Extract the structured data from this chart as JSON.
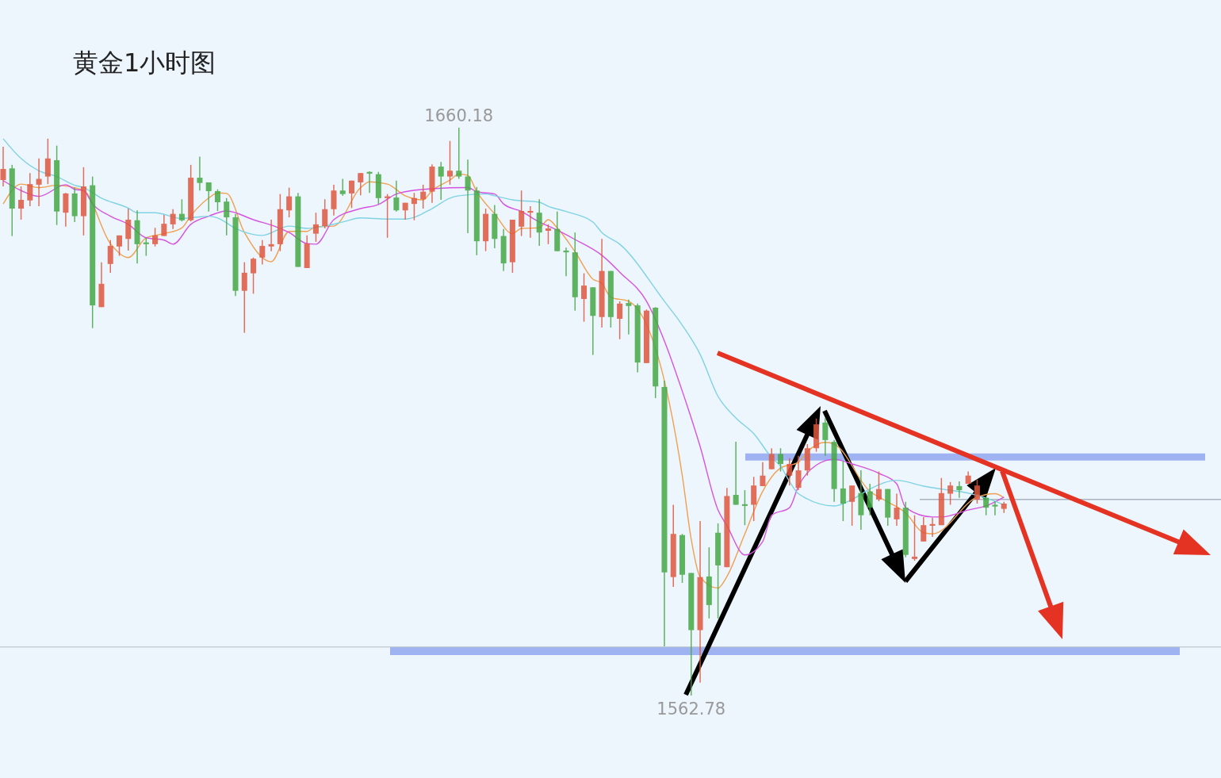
{
  "chart_data": {
    "type": "candlestick",
    "title": "黄金1小时图",
    "categories": [
      null,
      null,
      null,
      null,
      null,
      null,
      null,
      null,
      null,
      null,
      null,
      null,
      null,
      null,
      null,
      null,
      null,
      null,
      null,
      null,
      null,
      null,
      null,
      null,
      null,
      null,
      null,
      null,
      null,
      null,
      null,
      null,
      null,
      null,
      null,
      null,
      null,
      null,
      null,
      null,
      null,
      null,
      null,
      null,
      null,
      null,
      null,
      null,
      null,
      null,
      null,
      null,
      null,
      null,
      null,
      null,
      null,
      null,
      null,
      null,
      null,
      null,
      null,
      null,
      null,
      null,
      null,
      null,
      null,
      null,
      null,
      null,
      null,
      null,
      null,
      null,
      null,
      null,
      null,
      null,
      null,
      null,
      null,
      null,
      null,
      null,
      null,
      null,
      null,
      null,
      null,
      null,
      null,
      null,
      null,
      null,
      null,
      null,
      null,
      null,
      null,
      null,
      null,
      null,
      null,
      null,
      null,
      null,
      null,
      null,
      null,
      null,
      null
    ],
    "colors": [
      "#e0573e",
      "#44a844",
      "#e0573e",
      "#e0573e",
      "#e0573e",
      "#e0573e",
      "#44a844",
      "#e0573e",
      "#44a844",
      "#e0573e",
      "#44a844",
      "#e0573e",
      "#e0573e",
      "#e0573e",
      "#e0573e",
      "#44a844",
      "#44a844",
      "#e0573e",
      "#e0573e",
      "#e0573e",
      "#44a844",
      "#e0573e",
      "#44a844",
      "#44a844",
      "#44a844",
      "#44a844",
      "#44a844",
      "#e0573e",
      "#e0573e",
      "#e0573e",
      "#e0573e",
      "#e0573e",
      "#e0573e",
      "#44a844",
      "#e0573e",
      "#e0573e",
      "#e0573e",
      "#e0573e",
      "#44a844",
      "#e0573e",
      "#e0573e",
      "#44a844",
      "#44a844",
      "#e0573e",
      "#44a844",
      "#e0573e",
      "#e0573e",
      "#e0573e",
      "#e0573e",
      "#44a844",
      "#e0573e",
      "#44a844",
      "#44a844",
      "#44a844",
      "#e0573e",
      "#44a844",
      "#44a844",
      "#e0573e",
      "#e0573e",
      "#e0573e",
      "#44a844",
      "#e0573e",
      "#44a844",
      "#44a844",
      "#44a844",
      "#e0573e",
      "#44a844",
      "#e0573e",
      "#44a844",
      "#e0573e",
      "#44a844",
      "#44a844",
      "#e0573e",
      "#44a844",
      "#44a844",
      "#e0573e",
      "#44a844",
      "#44a844",
      "#e0573e",
      "#44a844",
      "#44a844",
      "#e0573e",
      "#44a844",
      "#44a844",
      "#e0573e",
      "#e0573e",
      "#e0573e",
      "#44a844",
      "#e0573e",
      "#e0573e",
      "#e0573e",
      "#e0573e",
      "#44a844",
      "#44a844",
      "#44a844",
      "#e0573e",
      "#44a844",
      "#44a844",
      "#e0573e",
      "#44a844",
      "#e0573e",
      "#44a844",
      "#e0573e",
      "#e0573e",
      "#e0573e",
      "#e0573e",
      "#e0573e",
      "#44a844",
      "#e0573e",
      "#e0573e",
      "#44a844",
      "#44a844",
      "#e0573e"
    ],
    "ohlc": [
      [
        1651.2,
        1656.9,
        1650.1,
        1653.1
      ],
      [
        1653.2,
        1653.8,
        1641.6,
        1646.3
      ],
      [
        1646.3,
        1650.1,
        1644.4,
        1647.8
      ],
      [
        1647.7,
        1652.4,
        1646.7,
        1650.5
      ],
      [
        1650.4,
        1654.9,
        1646.7,
        1651.4
      ],
      [
        1651.8,
        1658.3,
        1650.5,
        1654.9
      ],
      [
        1654.6,
        1657.1,
        1643.5,
        1645.8
      ],
      [
        1645.6,
        1649.0,
        1643.2,
        1648.9
      ],
      [
        1648.9,
        1649.9,
        1644.0,
        1645.0
      ],
      [
        1645.0,
        1653.4,
        1641.7,
        1650.1
      ],
      [
        1650.3,
        1651.8,
        1625.8,
        1629.7
      ],
      [
        1629.4,
        1637.1,
        1629.4,
        1633.4
      ],
      [
        1636.8,
        1640.9,
        1635.3,
        1639.9
      ],
      [
        1639.8,
        1641.7,
        1638.2,
        1641.7
      ],
      [
        1641.1,
        1646.3,
        1639.1,
        1644.4
      ],
      [
        1644.3,
        1646.0,
        1636.9,
        1640.2
      ],
      [
        1640.5,
        1641.3,
        1638.2,
        1640.2
      ],
      [
        1640.2,
        1643.0,
        1639.8,
        1641.7
      ],
      [
        1641.6,
        1645.2,
        1641.6,
        1643.7
      ],
      [
        1643.6,
        1646.2,
        1642.8,
        1645.4
      ],
      [
        1645.4,
        1647.9,
        1644.1,
        1644.3
      ],
      [
        1644.3,
        1653.8,
        1644.1,
        1651.6
      ],
      [
        1651.6,
        1655.2,
        1649.4,
        1650.7
      ],
      [
        1650.8,
        1650.8,
        1645.8,
        1649.3
      ],
      [
        1649.3,
        1649.6,
        1645.9,
        1647.4
      ],
      [
        1647.5,
        1648.1,
        1641.7,
        1644.8
      ],
      [
        1644.8,
        1645.4,
        1631.3,
        1632.2
      ],
      [
        1632.2,
        1637.1,
        1625.0,
        1635.3
      ],
      [
        1635.2,
        1637.9,
        1631.7,
        1637.7
      ],
      [
        1637.9,
        1640.9,
        1636.7,
        1639.9
      ],
      [
        1639.8,
        1644.4,
        1639.0,
        1640.2
      ],
      [
        1640.2,
        1648.8,
        1639.0,
        1646.2
      ],
      [
        1646.0,
        1649.9,
        1644.8,
        1648.4
      ],
      [
        1648.4,
        1649.0,
        1636.3,
        1636.3
      ],
      [
        1636.1,
        1641.7,
        1636.1,
        1640.3
      ],
      [
        1642.0,
        1645.6,
        1640.6,
        1643.6
      ],
      [
        1643.3,
        1647.9,
        1642.9,
        1646.2
      ],
      [
        1646.2,
        1650.4,
        1645.1,
        1649.4
      ],
      [
        1649.4,
        1651.4,
        1648.5,
        1648.8
      ],
      [
        1648.9,
        1651.1,
        1646.4,
        1651.1
      ],
      [
        1650.8,
        1652.4,
        1648.6,
        1652.4
      ],
      [
        1652.6,
        1652.7,
        1649.0,
        1652.3
      ],
      [
        1652.2,
        1652.6,
        1647.1,
        1648.1
      ],
      [
        1648.1,
        1648.8,
        1641.3,
        1648.4
      ],
      [
        1648.2,
        1651.1,
        1645.8,
        1646.0
      ],
      [
        1646.0,
        1647.3,
        1644.4,
        1647.3
      ],
      [
        1647.1,
        1649.0,
        1644.3,
        1648.1
      ],
      [
        1647.9,
        1650.4,
        1646.3,
        1649.2
      ],
      [
        1649.2,
        1653.9,
        1647.3,
        1653.5
      ],
      [
        1653.5,
        1654.3,
        1647.8,
        1651.8
      ],
      [
        1651.8,
        1657.9,
        1650.4,
        1652.8
      ],
      [
        1652.8,
        1660.18,
        1651.4,
        1651.8
      ],
      [
        1651.8,
        1654.7,
        1642.1,
        1649.4
      ],
      [
        1649.4,
        1650.0,
        1638.3,
        1640.7
      ],
      [
        1640.7,
        1646.3,
        1639.0,
        1645.4
      ],
      [
        1645.4,
        1646.9,
        1639.5,
        1641.1
      ],
      [
        1641.6,
        1642.8,
        1635.6,
        1636.9
      ],
      [
        1637.1,
        1644.4,
        1635.3,
        1644.4
      ],
      [
        1643.2,
        1649.4,
        1641.6,
        1645.9
      ],
      [
        1645.6,
        1646.7,
        1641.3,
        1645.9
      ],
      [
        1645.6,
        1647.9,
        1639.9,
        1642.2
      ],
      [
        1642.5,
        1643.6,
        1640.2,
        1642.9
      ],
      [
        1642.8,
        1645.8,
        1639.0,
        1639.0
      ],
      [
        1639.1,
        1639.6,
        1634.7,
        1638.8
      ],
      [
        1638.8,
        1642.2,
        1628.8,
        1631.1
      ],
      [
        1630.8,
        1635.2,
        1626.9,
        1633.1
      ],
      [
        1632.8,
        1632.8,
        1621.2,
        1627.9
      ],
      [
        1627.7,
        1641.1,
        1625.9,
        1635.6
      ],
      [
        1635.6,
        1635.6,
        1625.9,
        1627.7
      ],
      [
        1627.4,
        1630.4,
        1623.9,
        1630.0
      ],
      [
        1630.1,
        1630.7,
        1624.7,
        1629.6
      ],
      [
        1629.7,
        1630.0,
        1618.2,
        1619.9
      ],
      [
        1619.8,
        1629.0,
        1619.8,
        1628.8
      ],
      [
        1629.3,
        1629.4,
        1613.8,
        1615.8
      ],
      [
        1615.7,
        1616.8,
        1571.2,
        1583.9
      ],
      [
        1583.1,
        1595.5,
        1581.4,
        1590.5
      ],
      [
        1590.3,
        1590.5,
        1582.1,
        1583.5
      ],
      [
        1583.8,
        1583.8,
        1562.78,
        1574.0
      ],
      [
        1574.0,
        1592.7,
        1565.0,
        1583.1
      ],
      [
        1583.2,
        1588.2,
        1576.0,
        1578.3
      ],
      [
        1590.7,
        1592.3,
        1576.0,
        1585.1
      ],
      [
        1584.8,
        1598.4,
        1584.8,
        1597.0
      ],
      [
        1597.2,
        1606.3,
        1595.5,
        1595.5
      ],
      [
        1595.6,
        1598.0,
        1592.0,
        1595.3
      ],
      [
        1595.5,
        1600.3,
        1592.7,
        1598.8
      ],
      [
        1598.7,
        1602.8,
        1598.7,
        1600.5
      ],
      [
        1601.6,
        1605.2,
        1601.6,
        1604.2
      ],
      [
        1604.2,
        1605.2,
        1601.2,
        1602.5
      ],
      [
        1600.5,
        1603.5,
        1598.8,
        1602.5
      ],
      [
        1598.4,
        1603.9,
        1598.0,
        1601.4
      ],
      [
        1601.4,
        1605.9,
        1600.5,
        1605.2
      ],
      [
        1605.2,
        1610.3,
        1604.6,
        1609.3
      ],
      [
        1609.6,
        1610.4,
        1603.9,
        1606.6
      ],
      [
        1606.3,
        1606.6,
        1596.0,
        1598.2
      ],
      [
        1598.3,
        1603.0,
        1592.7,
        1595.7
      ],
      [
        1596.0,
        1598.8,
        1591.9,
        1598.8
      ],
      [
        1597.5,
        1601.4,
        1591.2,
        1593.7
      ],
      [
        1597.8,
        1599.1,
        1593.7,
        1595.0
      ],
      [
        1596.4,
        1601.2,
        1596.1,
        1598.2
      ],
      [
        1598.2,
        1598.2,
        1591.9,
        1593.3
      ],
      [
        1593.0,
        1597.4,
        1591.9,
        1595.0
      ],
      [
        1595.0,
        1596.0,
        1586.5,
        1586.9
      ],
      [
        1586.2,
        1593.7,
        1585.9,
        1586.6
      ],
      [
        1589.2,
        1593.4,
        1589.2,
        1592.0
      ],
      [
        1591.9,
        1593.3,
        1590.0,
        1592.2
      ],
      [
        1592.0,
        1600.1,
        1592.0,
        1597.5
      ],
      [
        1597.4,
        1599.4,
        1595.5,
        1598.8
      ],
      [
        1598.7,
        1599.5,
        1596.7,
        1598.0
      ],
      [
        1599.1,
        1601.2,
        1599.1,
        1600.5
      ],
      [
        1596.4,
        1599.8,
        1595.7,
        1598.8
      ],
      [
        1596.7,
        1596.8,
        1593.7,
        1595.0
      ],
      [
        1595.5,
        1596.1,
        1593.7,
        1595.2
      ],
      [
        1594.8,
        1596.0,
        1594.1,
        1595.7
      ]
    ],
    "series": [
      {
        "type": "line",
        "color": "#f0a050",
        "values": [
          1647.1,
          null,
          1650.5,
          null,
          1649.9,
          null,
          1650.3,
          null,
          null,
          1649.4,
          null,
          null,
          1640.3,
          null,
          1637.9,
          null,
          1641.3,
          null,
          1642.0,
          null,
          1643.0,
          1645.1,
          null,
          1648.1,
          1649.0,
          1648.9,
          null,
          1642.2,
          null,
          null,
          1637.2,
          null,
          1642.4,
          null,
          1642.4,
          1643.2,
          null,
          1643.3,
          null,
          null,
          1649.9,
          1650.9,
          null,
          1650.5,
          null,
          1648.5,
          null,
          1647.8,
          1649.4,
          null,
          1651.2,
          1652.2,
          1652.0,
          1649.2,
          null,
          1645.4,
          null,
          1642.0,
          1642.9,
          null,
          1643.0,
          1644.4,
          1643.0,
          null,
          1638.9,
          null,
          1634.2,
          1633.5,
          1631.1,
          null,
          1630.4,
          null,
          null,
          null,
          null,
          null,
          1600.5,
          1589.6,
          1583.1,
          null,
          1581.2,
          1583.2,
          null,
          1590.5,
          null,
          1597.8,
          null,
          1601.8,
          null,
          1602.8,
          1604.6,
          null,
          1606.2,
          1605.9,
          null,
          null,
          null,
          1597.8,
          null,
          1596.0,
          null,
          1594.1,
          null,
          1590.7,
          1590.5,
          null,
          null,
          null,
          null,
          1596.8,
          null,
          1597.4,
          1596.7
        ]
      },
      {
        "type": "line",
        "color": "#d553e0",
        "values": [
          1651.1,
          null,
          1649.4,
          null,
          1648.4,
          null,
          null,
          1650.4,
          1649.6,
          1649.4,
          1647.1,
          null,
          1645.0,
          null,
          1643.6,
          null,
          1641.3,
          null,
          1640.9,
          1640.2,
          null,
          1643.6,
          null,
          1645.0,
          null,
          1645.9,
          null,
          null,
          1644.4,
          null,
          null,
          1642.9,
          1642.2,
          null,
          1640.3,
          1640.2,
          null,
          1644.4,
          null,
          null,
          1646.3,
          null,
          1647.0,
          null,
          1648.8,
          1649.2,
          null,
          null,
          1649.7,
          null,
          null,
          null,
          1649.9,
          1649.2,
          null,
          1648.8,
          1647.1,
          null,
          1645.8,
          null,
          1644.0,
          null,
          1642.6,
          null,
          1641.0,
          null,
          null,
          1638.3,
          null,
          1635.4,
          null,
          null,
          1630.4,
          null,
          1623.6,
          null,
          1615.0,
          null,
          1605.5,
          null,
          1594.6,
          1591.9,
          null,
          1586.9,
          null,
          1589.2,
          1593.7,
          null,
          1595.0,
          1598.7,
          null,
          1602.3,
          null,
          1603.3,
          null,
          1602.5,
          null,
          null,
          1600.9,
          null,
          1599.1,
          1595.0,
          null,
          null,
          1593.4,
          1593.4,
          null,
          null,
          1594.6,
          null,
          1595.3,
          null,
          1596.8
        ]
      },
      {
        "type": "line",
        "color": "#7fd3e3",
        "values": [
          1658.3,
          null,
          1654.9,
          null,
          1652.8,
          null,
          1651.8,
          null,
          1650.3,
          1649.9,
          null,
          1648.1,
          null,
          null,
          1646.4,
          1645.6,
          null,
          1645.6,
          null,
          null,
          1644.6,
          null,
          null,
          1645.0,
          1644.7,
          null,
          1642.9,
          null,
          null,
          1641.7,
          null,
          null,
          1643.3,
          null,
          1642.9,
          null,
          1643.3,
          null,
          1644.0,
          null,
          1644.7,
          null,
          null,
          1644.5,
          null,
          1644.5,
          null,
          null,
          1646.3,
          null,
          1648.1,
          1648.5,
          null,
          null,
          1648.8,
          1648.5,
          null,
          1647.8,
          null,
          null,
          1647.4,
          1646.7,
          null,
          1645.8,
          null,
          null,
          1644.0,
          1642.2,
          null,
          1640.2,
          null,
          null,
          null,
          null,
          1630.4,
          null,
          1626.3,
          null,
          1621.3,
          null,
          1614.1,
          null,
          1610.4,
          null,
          1607.7,
          null,
          1603.6,
          1602.1,
          1599.5,
          1597.4,
          null,
          null,
          null,
          1595.3,
          null,
          1596.4,
          null,
          1598.2,
          null,
          null,
          1599.7,
          null,
          null,
          1598.7,
          null,
          1598.2,
          null,
          null,
          1597.5,
          null,
          null,
          1596.1,
          1595.5
        ]
      }
    ],
    "ref_lines": [
      {
        "axis": "y",
        "value": 1603.7,
        "color": "#9fb3f2"
      },
      {
        "axis": "y",
        "value": 1570.4,
        "color": "#9fb3f2"
      },
      {
        "axis": "y",
        "value": 1571.1,
        "color": "#b4bcc6"
      },
      {
        "axis": "y",
        "value": 1596.4,
        "color": "#a9b3bf"
      }
    ],
    "annotations": [
      {
        "text": "1660.18",
        "y": 1660.18
      },
      {
        "text": "1562.78",
        "y": 1562.78
      }
    ]
  }
}
